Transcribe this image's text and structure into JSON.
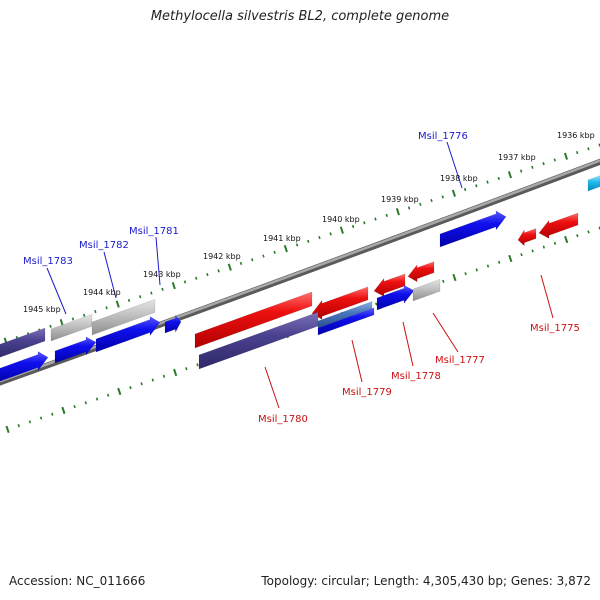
{
  "title": "Methylocella silvestris BL2, complete genome",
  "footer": {
    "accession": "Accession: NC_011666",
    "summary": "Topology: circular; Length: 4,305,430 bp; Genes: 3,872"
  },
  "colors": {
    "forward_label": "#1a1acc",
    "reverse_label": "#cc1111",
    "tick": "#2a7a2a",
    "backbone": "#777777"
  },
  "kbp_ticks": [
    {
      "label": "1936 kbp"
    },
    {
      "label": "1937 kbp"
    },
    {
      "label": "1938 kbp"
    },
    {
      "label": "1939 kbp"
    },
    {
      "label": "1940 kbp"
    },
    {
      "label": "1941 kbp"
    },
    {
      "label": "1942 kbp"
    },
    {
      "label": "1943 kbp"
    },
    {
      "label": "1944 kbp"
    },
    {
      "label": "1945 kbp"
    }
  ],
  "gene_labels": [
    {
      "name": "Msil_1776",
      "strand": "forward"
    },
    {
      "name": "Msil_1781",
      "strand": "forward"
    },
    {
      "name": "Msil_1782",
      "strand": "forward"
    },
    {
      "name": "Msil_1783",
      "strand": "forward"
    },
    {
      "name": "Msil_1775",
      "strand": "reverse"
    },
    {
      "name": "Msil_1777",
      "strand": "reverse"
    },
    {
      "name": "Msil_1778",
      "strand": "reverse"
    },
    {
      "name": "Msil_1779",
      "strand": "reverse"
    },
    {
      "name": "Msil_1780",
      "strand": "reverse"
    }
  ]
}
